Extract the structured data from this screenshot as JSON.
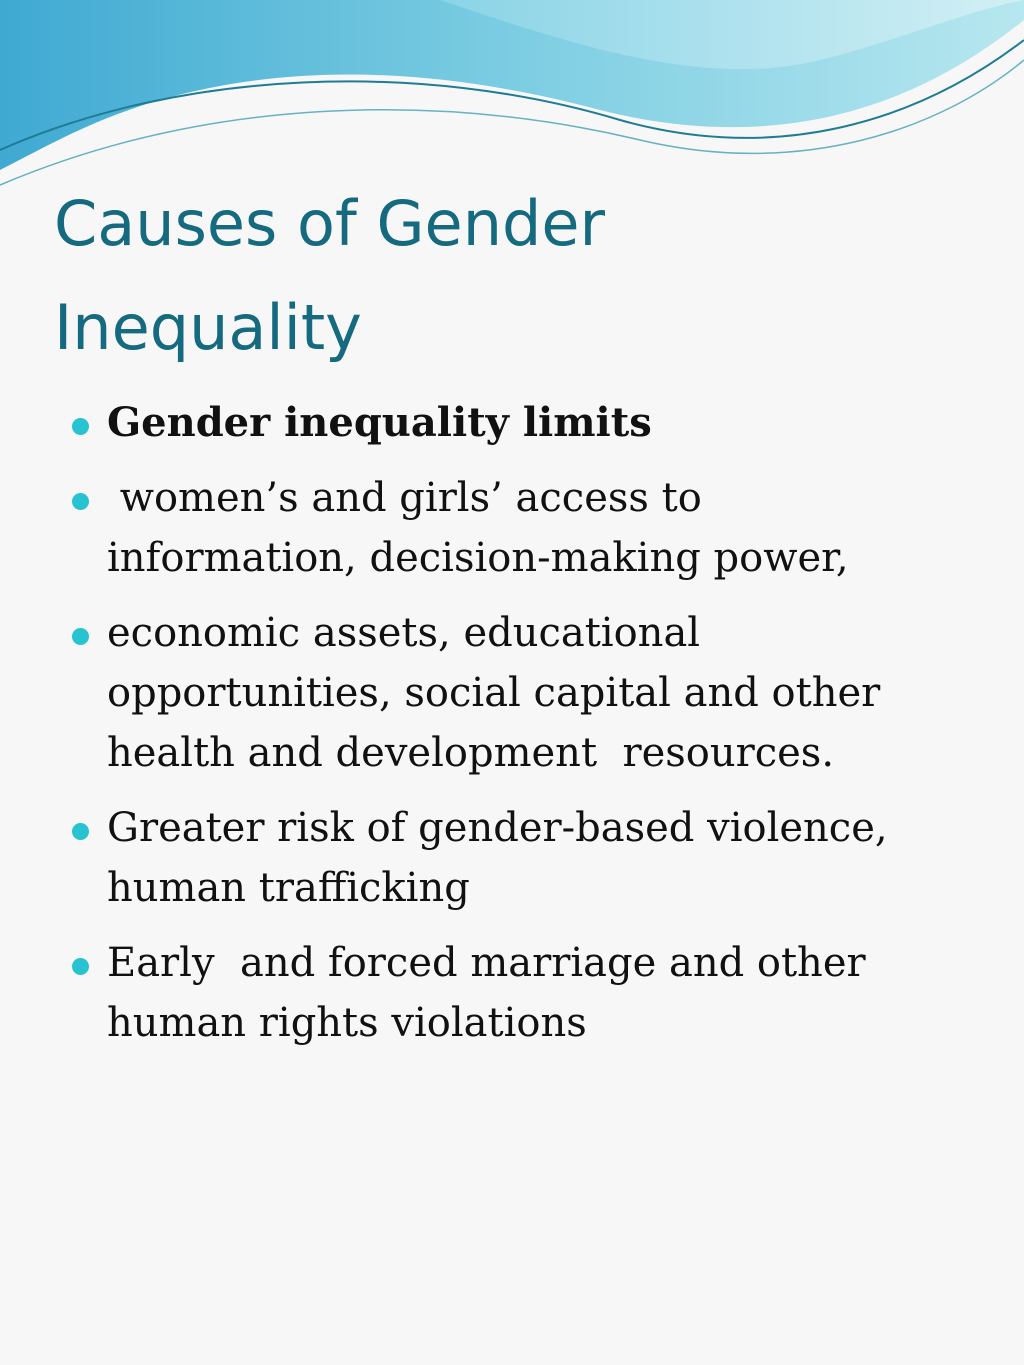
{
  "slide": {
    "title_lines": [
      "Causes of Gender",
      "Inequality"
    ],
    "bullets": [
      {
        "lines": [
          "Gender inequality limits"
        ],
        "bold": true
      },
      {
        "lines": [
          " women’s and girls’ access to",
          "information, decision-making power,"
        ]
      },
      {
        "lines": [
          "economic assets, educational",
          "opportunities, social capital and other",
          "health and development  resources."
        ]
      },
      {
        "lines": [
          "Greater risk of gender-based violence,",
          "human trafficking"
        ]
      },
      {
        "lines": [
          "Early  and forced marriage and other",
          "human rights violations"
        ]
      }
    ]
  },
  "theme": {
    "title_color": "#156a80",
    "bullet_color": "#27c3d1",
    "wave_color": "#5ab8d6"
  }
}
